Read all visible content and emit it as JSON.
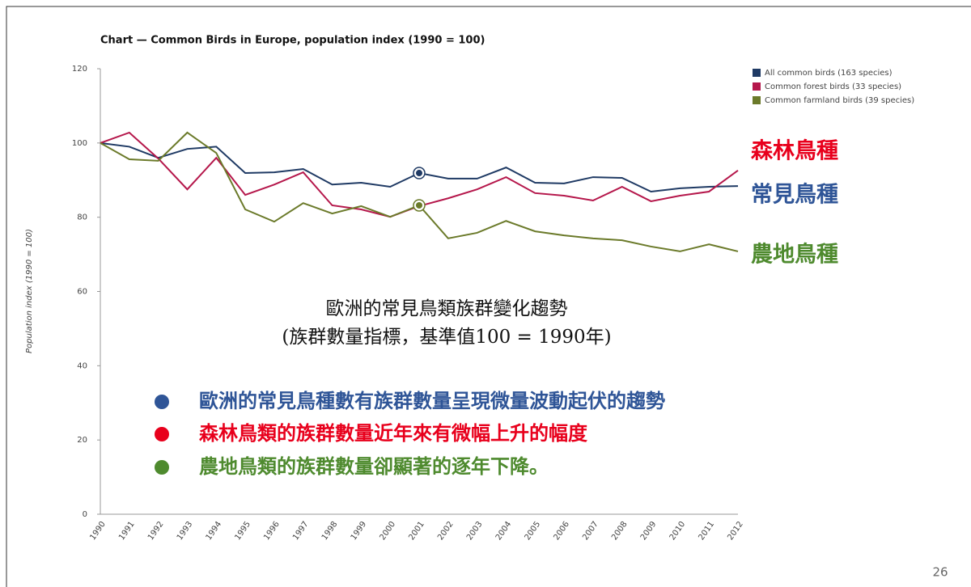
{
  "chart_data": {
    "type": "line",
    "title": "Chart — Common Birds in Europe, population index (1990 = 100)",
    "y_label": "Population index (1990 = 100)",
    "categories": [
      "1990",
      "1991",
      "1992",
      "1993",
      "1994",
      "1995",
      "1996",
      "1997",
      "1998",
      "1999",
      "2000",
      "2001",
      "2002",
      "2003",
      "2004",
      "2005",
      "2006",
      "2007",
      "2008",
      "2009",
      "2010",
      "2011",
      "2012"
    ],
    "series": [
      {
        "name": "All common birds (163 species)",
        "color": "#1f3a64",
        "values": [
          100,
          99,
          96,
          98.4,
          99,
          91.9,
          92.1,
          93,
          88.8,
          89.3,
          88.2,
          91.9,
          90.4,
          90.4,
          93.4,
          89.3,
          89.1,
          90.8,
          90.6,
          86.9,
          87.8,
          88.2,
          88.4
        ]
      },
      {
        "name": "Common forest birds (33 species)",
        "color": "#b5174b",
        "values": [
          100,
          102.8,
          95.8,
          87.5,
          96,
          86,
          88.8,
          92.1,
          83.2,
          82.1,
          80.1,
          83,
          85.1,
          87.5,
          90.8,
          86.5,
          85.8,
          84.5,
          88.2,
          84.3,
          85.8,
          86.9,
          92.6
        ]
      },
      {
        "name": "Common farmland birds (39 species)",
        "color": "#6b7a2a",
        "values": [
          100,
          95.6,
          95.2,
          102.8,
          97.3,
          82.1,
          78.8,
          83.8,
          81,
          83,
          80.1,
          83.2,
          74.3,
          75.8,
          79,
          76.2,
          75.1,
          74.3,
          73.8,
          72.1,
          70.8,
          72.7,
          70.8
        ]
      }
    ],
    "highlight_index": 11,
    "ylim": [
      0,
      120
    ],
    "yticks": [
      0,
      20,
      40,
      60,
      80,
      100,
      120
    ],
    "grid": false,
    "legend": "top-right",
    "series_labels": [
      {
        "text": "森林鳥種",
        "color": "#e8001c"
      },
      {
        "text": "常見鳥種",
        "color": "#2f5597"
      },
      {
        "text": "農地鳥種",
        "color": "#4e8a2e"
      }
    ],
    "caption": [
      "歐洲的常見鳥類族群變化趨勢",
      "(族群數量指標，基準值100 = 1990年)"
    ],
    "bullets": [
      {
        "text": "歐洲的常見鳥種數有族群數量呈現微量波動起伏的趨勢",
        "color": "#2f5597"
      },
      {
        "text": "森林鳥類的族群數量近年來有微幅上升的幅度",
        "color": "#e8001c"
      },
      {
        "text": "農地鳥類的族群數量卻顯著的逐年下降。",
        "color": "#4e8a2e"
      }
    ]
  },
  "page_number": "26"
}
